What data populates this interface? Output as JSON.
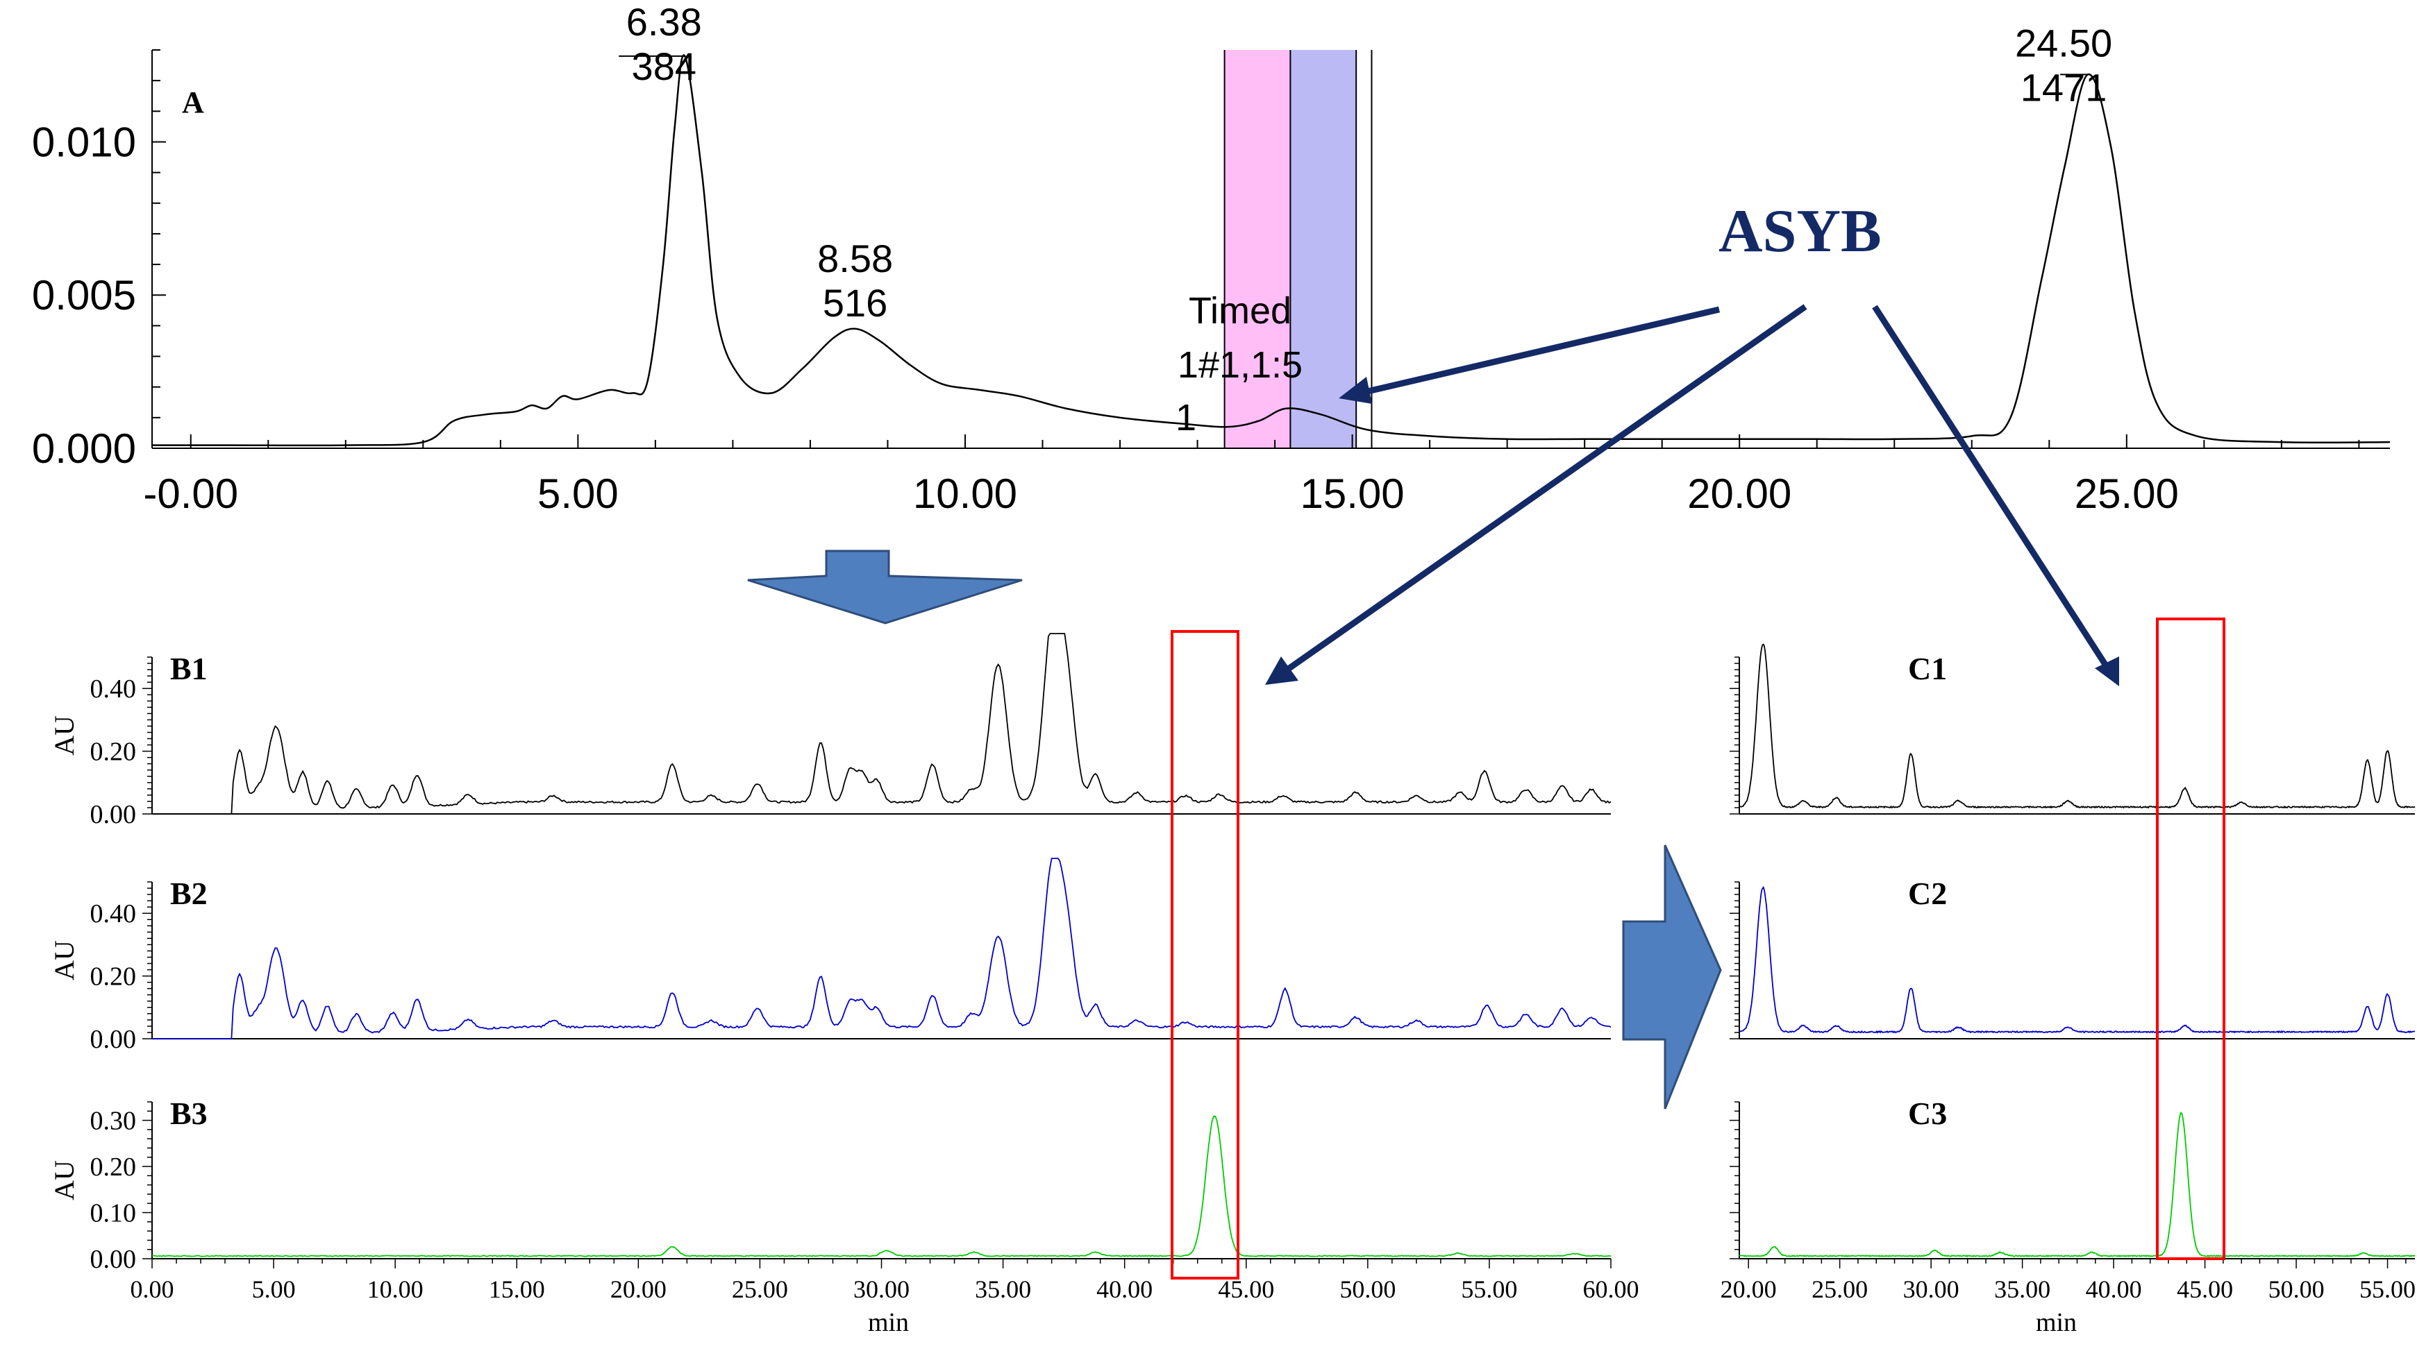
{
  "chart_data": [
    {
      "id": "A",
      "type": "line",
      "panel_label": "A",
      "xlim": [
        -0.5,
        28.4
      ],
      "ylim": [
        0,
        0.013
      ],
      "x_ticks": [
        "-0.00",
        "5.00",
        "10.00",
        "15.00",
        "20.00",
        "25.00"
      ],
      "x_tick_values": [
        0,
        5,
        10,
        15,
        20,
        25
      ],
      "y_ticks": [
        "0.000",
        "0.005",
        "0.010"
      ],
      "y_tick_values": [
        0,
        0.005,
        0.01
      ],
      "series": [
        {
          "color": "#000000",
          "x": [
            -0.5,
            0.5,
            2.0,
            3.0,
            3.4,
            3.8,
            4.2,
            4.4,
            4.6,
            4.8,
            5.0,
            5.4,
            5.7,
            5.9,
            6.1,
            6.25,
            6.38,
            6.6,
            6.8,
            7.1,
            7.5,
            7.9,
            8.3,
            8.58,
            8.9,
            9.3,
            9.7,
            10.2,
            10.7,
            11.3,
            12.0,
            12.8,
            13.4,
            13.8,
            14.15,
            14.6,
            15.2,
            16.0,
            17.0,
            18.0,
            19.0,
            20.0,
            21.0,
            22.0,
            23.0,
            23.5,
            23.9,
            24.2,
            24.5,
            24.8,
            25.1,
            25.4,
            25.9,
            27.0,
            28.4
          ],
          "y": [
            0.0001,
            0.0001,
            0.0001,
            0.0002,
            0.0009,
            0.0011,
            0.0012,
            0.0014,
            0.0013,
            0.0017,
            0.0016,
            0.0019,
            0.0018,
            0.0022,
            0.006,
            0.0105,
            0.0128,
            0.009,
            0.0042,
            0.0023,
            0.0018,
            0.0026,
            0.0036,
            0.0039,
            0.0035,
            0.0027,
            0.0021,
            0.0019,
            0.0017,
            0.0013,
            0.001,
            0.0008,
            0.0007,
            0.0009,
            0.0013,
            0.0011,
            0.0006,
            0.0004,
            0.0003,
            0.0003,
            0.0003,
            0.0003,
            0.0003,
            0.0003,
            0.0004,
            0.001,
            0.0055,
            0.0092,
            0.0122,
            0.0098,
            0.0045,
            0.0014,
            0.0004,
            0.0002,
            0.0002
          ]
        }
      ],
      "peak_labels": [
        {
          "x": 6.38,
          "y": 0.0128,
          "time": "6.38",
          "count": "384"
        },
        {
          "x": 8.58,
          "y": 0.0039,
          "time": "8.58",
          "count": "516"
        },
        {
          "x": 24.5,
          "y": 0.0122,
          "time": "24.50",
          "count": "1471"
        }
      ],
      "fraction_label": [
        "Timed",
        "1#1,1:5",
        "1"
      ],
      "shaded_windows": [
        {
          "from": 13.35,
          "to": 14.2,
          "color": "#ffbef5"
        },
        {
          "from": 14.2,
          "to": 15.05,
          "color": "#bcbaf5"
        }
      ],
      "window_lines": [
        13.35,
        14.2,
        15.05,
        15.25
      ]
    },
    {
      "id": "B1",
      "type": "line",
      "panel_label": "B1",
      "ylabel": "AU",
      "xlim": [
        0,
        60
      ],
      "ylim": [
        0,
        0.5
      ],
      "y_ticks": [
        "0.00",
        "0.20",
        "0.40"
      ],
      "y_tick_values": [
        0,
        0.2,
        0.4
      ],
      "series": [
        {
          "color": "#000000",
          "baseline": 0.0,
          "noise": 0.006,
          "start": 3.3,
          "peaks": [
            [
              3.6,
              0.2
            ],
            [
              4.3,
              0.06
            ],
            [
              5.1,
              0.27
            ],
            [
              6.2,
              0.12
            ],
            [
              7.2,
              0.09
            ],
            [
              8.4,
              0.06
            ],
            [
              9.9,
              0.07
            ],
            [
              10.9,
              0.1
            ],
            [
              13.0,
              0.03
            ],
            [
              16.5,
              0.02
            ],
            [
              21.4,
              0.12
            ],
            [
              23.0,
              0.02
            ],
            [
              24.9,
              0.06
            ],
            [
              27.5,
              0.19
            ],
            [
              28.7,
              0.1
            ],
            [
              29.2,
              0.09
            ],
            [
              29.8,
              0.07
            ],
            [
              32.1,
              0.12
            ],
            [
              33.7,
              0.04
            ],
            [
              34.8,
              0.44
            ],
            [
              37.0,
              0.52
            ],
            [
              37.6,
              0.38
            ],
            [
              38.8,
              0.09
            ],
            [
              40.5,
              0.03
            ],
            [
              42.5,
              0.02
            ],
            [
              43.9,
              0.025
            ],
            [
              46.5,
              0.02
            ],
            [
              49.5,
              0.03
            ],
            [
              52.0,
              0.02
            ],
            [
              53.8,
              0.03
            ],
            [
              54.8,
              0.1
            ],
            [
              56.5,
              0.04
            ],
            [
              58.0,
              0.05
            ],
            [
              59.2,
              0.04
            ]
          ]
        }
      ]
    },
    {
      "id": "B2",
      "type": "line",
      "panel_label": "B2",
      "ylabel": "AU",
      "xlim": [
        0,
        60
      ],
      "ylim": [
        0,
        0.5
      ],
      "y_ticks": [
        "0.00",
        "0.20",
        "0.40"
      ],
      "y_tick_values": [
        0,
        0.2,
        0.4
      ],
      "series": [
        {
          "color": "#0000cc",
          "baseline": 0.0,
          "noise": 0.006,
          "start": 3.3,
          "peaks": [
            [
              3.6,
              0.2
            ],
            [
              4.3,
              0.07
            ],
            [
              5.1,
              0.28
            ],
            [
              6.2,
              0.11
            ],
            [
              7.2,
              0.09
            ],
            [
              8.4,
              0.06
            ],
            [
              9.9,
              0.06
            ],
            [
              10.9,
              0.1
            ],
            [
              13.0,
              0.03
            ],
            [
              16.5,
              0.02
            ],
            [
              21.4,
              0.11
            ],
            [
              23.0,
              0.02
            ],
            [
              24.9,
              0.06
            ],
            [
              27.5,
              0.16
            ],
            [
              28.7,
              0.08
            ],
            [
              29.2,
              0.08
            ],
            [
              29.8,
              0.06
            ],
            [
              32.1,
              0.1
            ],
            [
              33.7,
              0.04
            ],
            [
              34.8,
              0.29
            ],
            [
              37.0,
              0.47
            ],
            [
              37.6,
              0.31
            ],
            [
              38.8,
              0.07
            ],
            [
              40.5,
              0.02
            ],
            [
              42.5,
              0.015
            ],
            [
              46.6,
              0.12
            ],
            [
              49.5,
              0.03
            ],
            [
              52.0,
              0.02
            ],
            [
              54.9,
              0.07
            ],
            [
              56.5,
              0.04
            ],
            [
              58.0,
              0.06
            ],
            [
              59.2,
              0.03
            ]
          ]
        }
      ]
    },
    {
      "id": "B3",
      "type": "line",
      "panel_label": "B3",
      "ylabel": "AU",
      "xlabel": "min",
      "xlim": [
        0,
        60
      ],
      "ylim": [
        0,
        0.34
      ],
      "x_ticks": [
        "0.00",
        "5.00",
        "10.00",
        "15.00",
        "20.00",
        "25.00",
        "30.00",
        "35.00",
        "40.00",
        "45.00",
        "50.00",
        "55.00",
        "60.00"
      ],
      "x_tick_values": [
        0,
        5,
        10,
        15,
        20,
        25,
        30,
        35,
        40,
        45,
        50,
        55,
        60
      ],
      "y_ticks": [
        "0.00",
        "0.10",
        "0.20",
        "0.30"
      ],
      "y_tick_values": [
        0,
        0.1,
        0.2,
        0.3
      ],
      "series": [
        {
          "color": "#00cc00",
          "baseline": 0.005,
          "noise": 0.002,
          "start": 0.0,
          "peaks": [
            [
              21.4,
              0.02
            ],
            [
              30.2,
              0.012
            ],
            [
              33.8,
              0.008
            ],
            [
              38.8,
              0.008
            ],
            [
              43.7,
              0.305
            ],
            [
              53.7,
              0.006
            ],
            [
              58.5,
              0.005
            ]
          ]
        }
      ]
    },
    {
      "id": "C1",
      "type": "line",
      "panel_label": "C1",
      "xlim": [
        19.5,
        56.5
      ],
      "ylim": [
        0,
        0.5
      ],
      "series": [
        {
          "color": "#000000",
          "baseline": 0.02,
          "noise": 0.004,
          "start": 19.5,
          "peaks": [
            [
              20.8,
              0.52
            ],
            [
              23.0,
              0.02
            ],
            [
              24.8,
              0.03
            ],
            [
              28.9,
              0.17
            ],
            [
              31.5,
              0.02
            ],
            [
              37.5,
              0.02
            ],
            [
              43.9,
              0.06
            ],
            [
              47.0,
              0.015
            ],
            [
              53.9,
              0.15
            ],
            [
              55.0,
              0.18
            ]
          ]
        }
      ]
    },
    {
      "id": "C2",
      "type": "line",
      "panel_label": "C2",
      "xlim": [
        19.5,
        56.5
      ],
      "ylim": [
        0,
        0.5
      ],
      "series": [
        {
          "color": "#0000cc",
          "baseline": 0.02,
          "noise": 0.004,
          "start": 19.5,
          "peaks": [
            [
              20.8,
              0.46
            ],
            [
              23.0,
              0.02
            ],
            [
              24.8,
              0.02
            ],
            [
              28.9,
              0.14
            ],
            [
              31.5,
              0.015
            ],
            [
              37.5,
              0.015
            ],
            [
              43.9,
              0.02
            ],
            [
              53.9,
              0.08
            ],
            [
              55.0,
              0.12
            ]
          ]
        }
      ]
    },
    {
      "id": "C3",
      "type": "line",
      "panel_label": "C3",
      "xlabel": "min",
      "xlim": [
        19.5,
        56.5
      ],
      "ylim": [
        0,
        0.34
      ],
      "x_ticks": [
        "20.00",
        "25.00",
        "30.00",
        "35.00",
        "40.00",
        "45.00",
        "50.00",
        "55.00"
      ],
      "x_tick_values": [
        20,
        25,
        30,
        35,
        40,
        45,
        50,
        55
      ],
      "series": [
        {
          "color": "#00cc00",
          "baseline": 0.005,
          "noise": 0.002,
          "start": 19.5,
          "peaks": [
            [
              21.4,
              0.02
            ],
            [
              30.2,
              0.012
            ],
            [
              33.8,
              0.008
            ],
            [
              38.8,
              0.008
            ],
            [
              43.7,
              0.31
            ],
            [
              53.7,
              0.006
            ]
          ]
        }
      ]
    }
  ],
  "annotation": {
    "label": "ASYB",
    "color": "#142a66"
  },
  "arrow_color": "#4f7fbf",
  "highlight_color": "#ff0000"
}
